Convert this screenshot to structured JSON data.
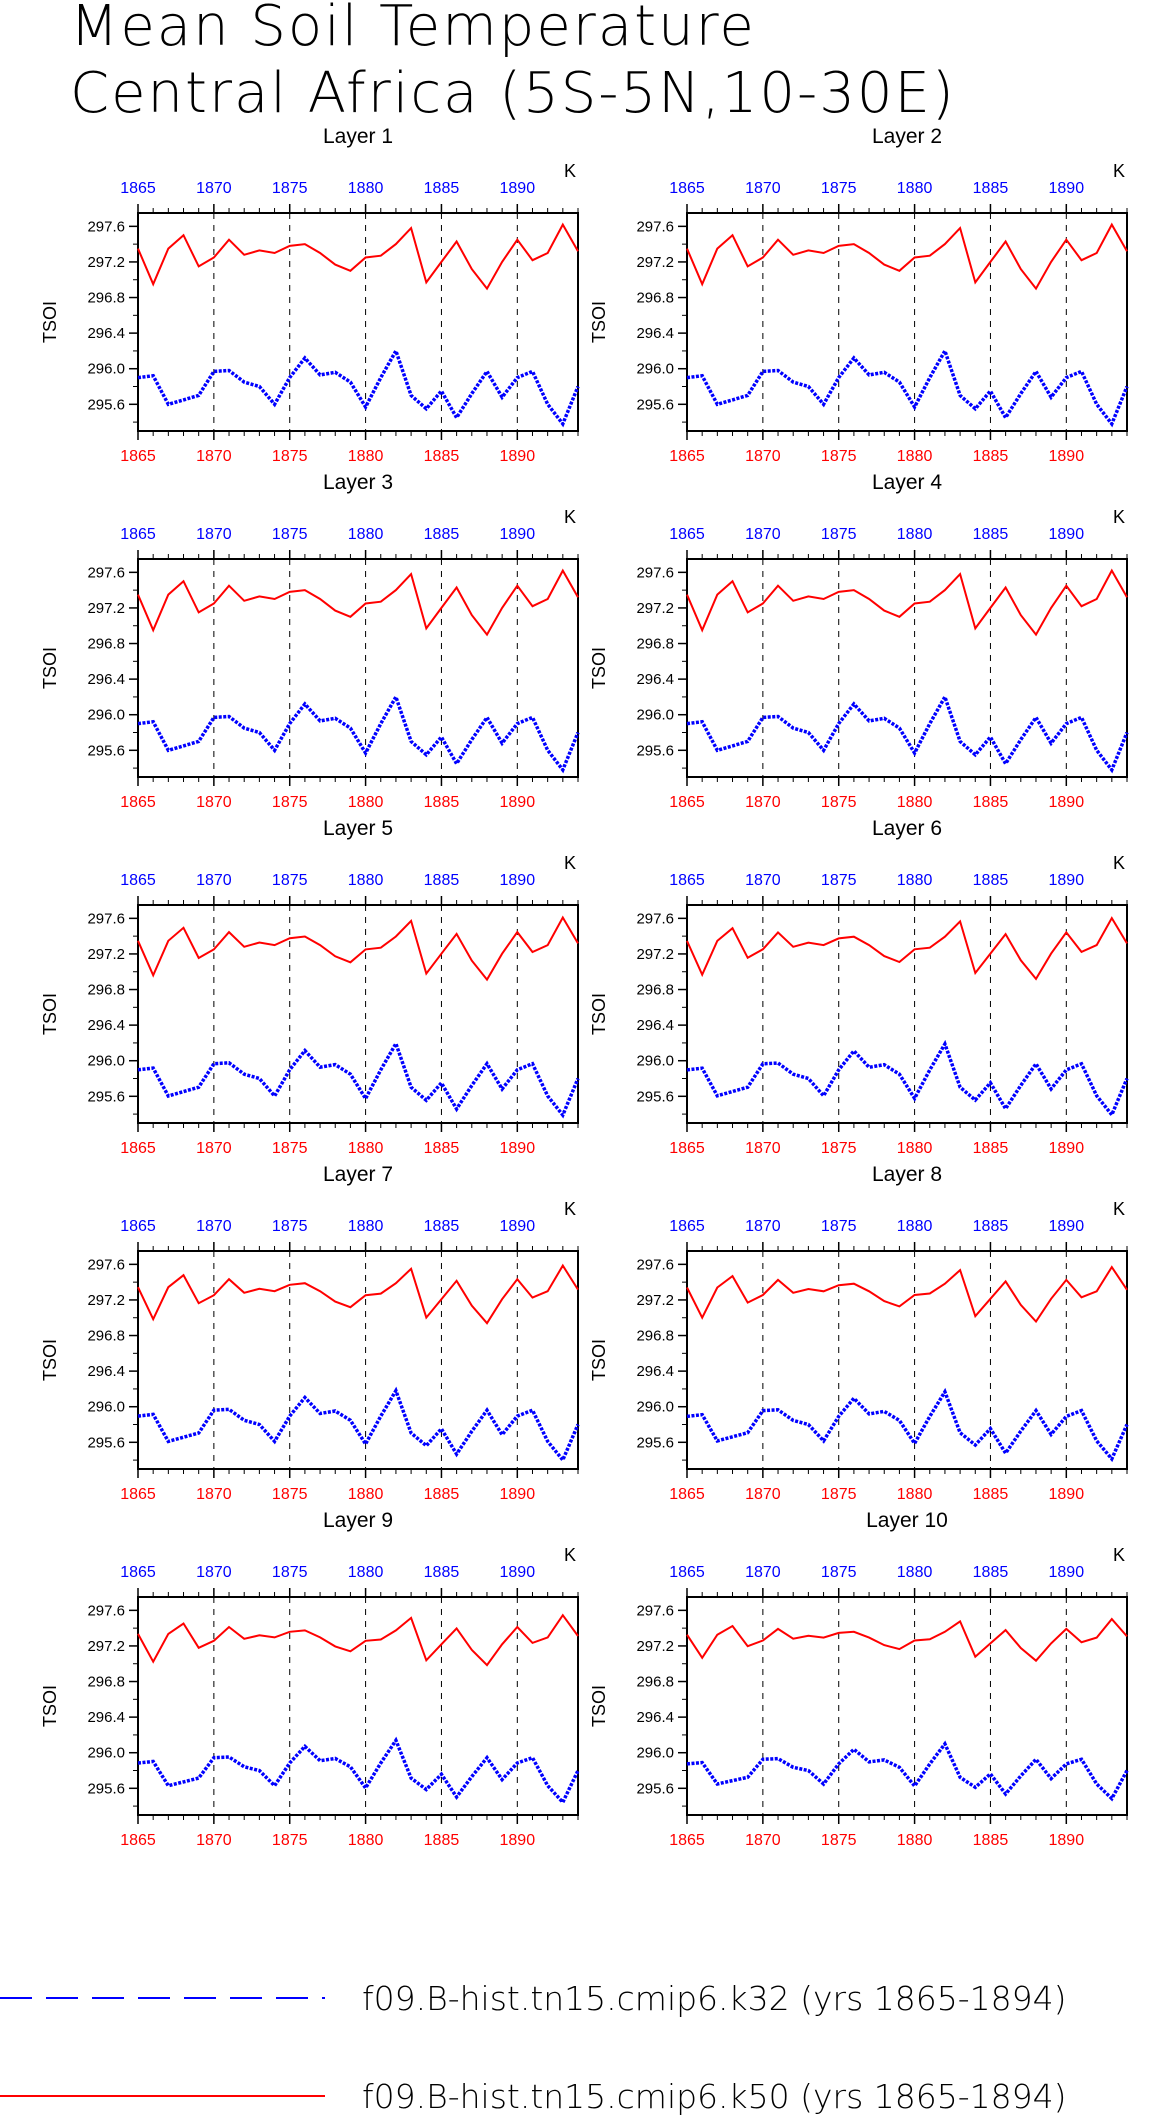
{
  "title": {
    "line1": "Mean Soil Temperature",
    "line2": "Central Africa (5S-5N,10-30E)"
  },
  "colors": {
    "k32": "#0000ff",
    "k50": "#ff0000",
    "axis": "#000000"
  },
  "legend": [
    {
      "series": "k32",
      "label": "f09.B-hist.tn15.cmip6.k32 (yrs 1865-1894)",
      "style": "dashed"
    },
    {
      "series": "k50",
      "label": "f09.B-hist.tn15.cmip6.k50 (yrs 1865-1894)",
      "style": "solid"
    }
  ],
  "chart_data": {
    "type": "line",
    "ylabel": "TSOI",
    "units": "K",
    "xlim": [
      1865,
      1894
    ],
    "ylim": [
      295.3,
      297.75
    ],
    "xticks": [
      1865,
      1870,
      1875,
      1880,
      1885,
      1890
    ],
    "yticks": [
      295.6,
      296.0,
      296.4,
      296.8,
      297.2,
      297.6
    ],
    "ytick_labels": [
      "295.6",
      "296.0",
      "296.4",
      "296.8",
      "297.2",
      "297.6"
    ],
    "x": [
      1865,
      1866,
      1867,
      1868,
      1869,
      1870,
      1871,
      1872,
      1873,
      1874,
      1875,
      1876,
      1877,
      1878,
      1879,
      1880,
      1881,
      1882,
      1883,
      1884,
      1885,
      1886,
      1887,
      1888,
      1889,
      1890,
      1891,
      1892,
      1893,
      1894
    ],
    "base_series": {
      "k50": [
        297.35,
        296.95,
        297.35,
        297.5,
        297.15,
        297.25,
        297.45,
        297.28,
        297.33,
        297.3,
        297.38,
        297.4,
        297.3,
        297.17,
        297.1,
        297.25,
        297.27,
        297.4,
        297.58,
        296.97,
        297.2,
        297.43,
        297.12,
        296.9,
        297.2,
        297.45,
        297.22,
        297.3,
        297.62,
        297.32
      ],
      "k32": [
        295.9,
        295.92,
        295.6,
        295.65,
        295.7,
        295.97,
        295.98,
        295.85,
        295.8,
        295.6,
        295.9,
        296.12,
        295.93,
        295.96,
        295.85,
        295.57,
        295.9,
        296.2,
        295.7,
        295.55,
        295.75,
        295.45,
        295.72,
        295.97,
        295.68,
        295.9,
        295.97,
        295.6,
        295.38,
        295.8
      ]
    },
    "panels": [
      {
        "title": "Layer 1",
        "damp50": 1.0,
        "damp32": 1.0
      },
      {
        "title": "Layer 2",
        "damp50": 1.0,
        "damp32": 1.0
      },
      {
        "title": "Layer 3",
        "damp50": 1.0,
        "damp32": 1.0
      },
      {
        "title": "Layer 4",
        "damp50": 1.0,
        "damp32": 1.0
      },
      {
        "title": "Layer 5",
        "damp50": 0.97,
        "damp32": 0.98
      },
      {
        "title": "Layer 6",
        "damp50": 0.95,
        "damp32": 0.97
      },
      {
        "title": "Layer 7",
        "damp50": 0.9,
        "damp32": 0.95
      },
      {
        "title": "Layer 8",
        "damp50": 0.85,
        "damp32": 0.92
      },
      {
        "title": "Layer 9",
        "damp50": 0.78,
        "damp32": 0.85
      },
      {
        "title": "Layer 10",
        "damp50": 0.65,
        "damp32": 0.75
      }
    ]
  }
}
